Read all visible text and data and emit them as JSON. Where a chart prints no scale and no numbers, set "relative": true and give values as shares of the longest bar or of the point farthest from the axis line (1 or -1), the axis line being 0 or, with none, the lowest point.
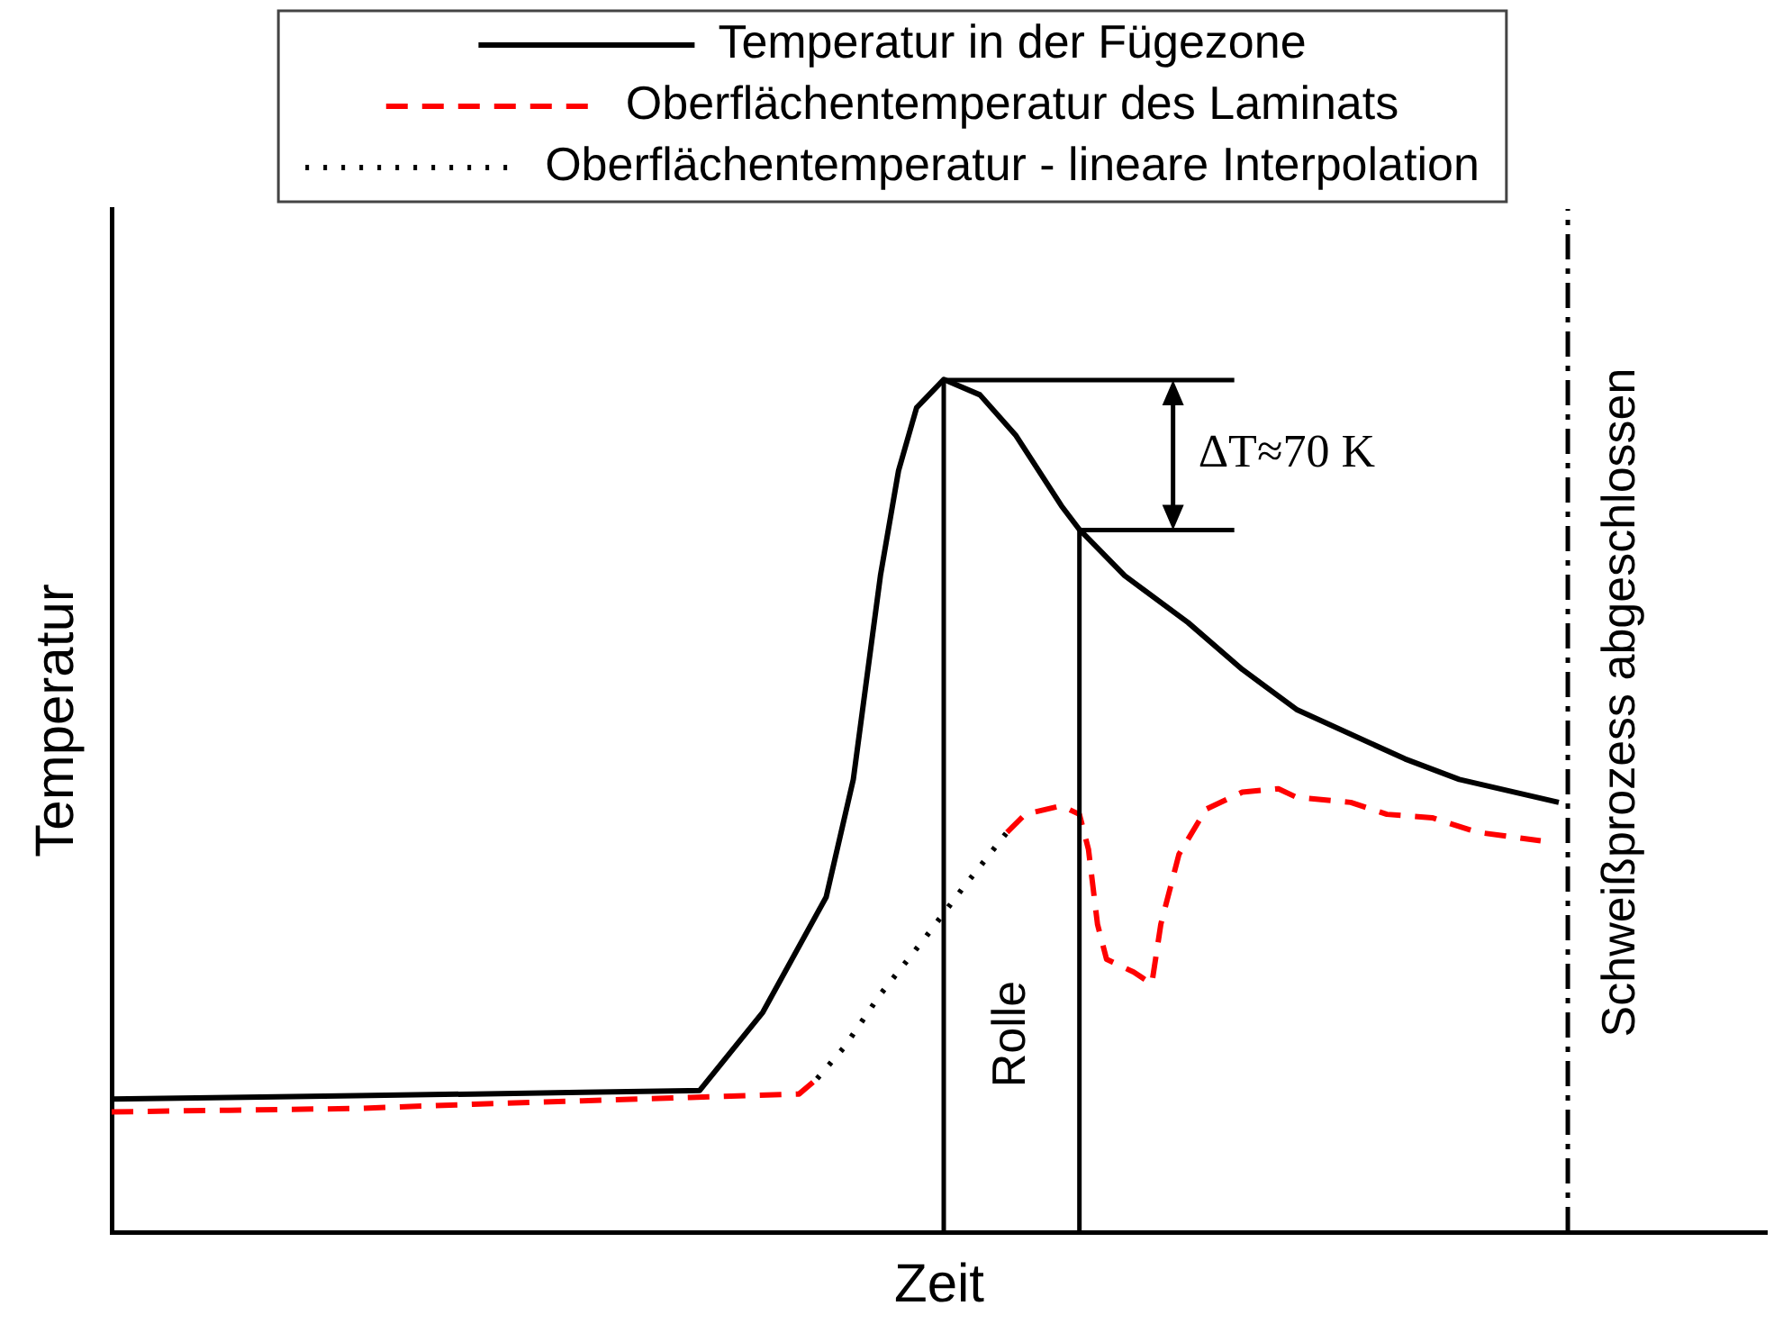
{
  "chart_data": {
    "type": "line",
    "relative": true,
    "xlabel": "Zeit",
    "ylabel": "Temperatur",
    "legend": "top",
    "marker": "none",
    "categories": [
      null,
      null,
      null,
      null,
      null,
      null,
      null,
      null,
      null,
      null,
      null,
      null,
      null,
      null,
      null,
      null,
      null,
      null,
      null,
      null,
      null,
      null,
      null,
      null,
      null,
      null,
      null,
      null,
      null,
      null,
      null,
      null,
      null,
      null,
      null,
      null,
      null,
      null,
      null,
      null,
      null,
      null,
      null,
      null,
      null,
      null,
      null,
      null,
      null,
      null,
      null,
      null,
      null,
      null,
      null,
      null,
      null,
      null,
      null,
      null,
      null,
      null,
      null,
      null,
      null,
      null,
      null,
      null,
      null,
      null,
      null,
      null,
      null,
      null,
      null,
      null,
      null,
      null,
      null,
      null,
      null,
      null,
      null,
      null,
      null,
      null,
      null,
      null,
      null,
      null,
      null,
      null,
      null,
      null,
      null,
      null,
      null,
      null,
      null,
      null,
      null,
      null,
      null,
      null,
      null,
      null,
      null,
      null,
      null,
      null,
      null,
      null,
      null,
      null,
      null,
      null,
      null,
      null,
      null,
      null,
      null,
      null,
      null,
      null,
      null,
      null,
      null,
      null,
      null,
      null,
      null,
      null,
      null,
      null,
      null,
      null,
      null,
      null,
      null,
      null,
      null,
      null,
      null,
      null,
      null,
      null,
      null,
      null,
      null,
      null,
      null,
      null,
      null,
      null,
      null,
      null,
      null,
      null,
      null,
      null,
      null,
      null,
      null,
      null,
      null,
      null,
      null,
      null,
      null,
      null,
      null,
      null,
      null,
      null,
      null,
      null,
      null,
      null,
      null,
      null,
      null,
      null,
      null,
      null
    ],
    "series": [
      {
        "name": "Temperatur in der Fügezone",
        "color": "#000000",
        "line_style": "solid",
        "values": [
          0.156,
          null,
          null,
          null,
          null,
          null,
          null,
          null,
          null,
          null,
          null,
          null,
          null,
          0.158,
          null,
          null,
          null,
          null,
          null,
          null,
          null,
          null,
          null,
          null,
          null,
          null,
          null,
          0.16,
          null,
          null,
          null,
          null,
          null,
          null,
          null,
          null,
          null,
          null,
          null,
          null,
          0.162,
          null,
          null,
          null,
          null,
          null,
          null,
          null,
          null,
          null,
          null,
          null,
          0.164,
          null,
          null,
          null,
          null,
          null,
          null,
          null,
          null,
          null,
          null,
          null,
          null,
          0.166,
          null,
          null,
          null,
          null,
          null,
          null,
          0.258,
          null,
          null,
          null,
          null,
          null,
          null,
          0.393,
          null,
          null,
          0.531,
          null,
          null,
          0.77,
          null,
          0.893,
          null,
          0.967,
          null,
          null,
          1,
          null,
          null,
          null,
          0.982,
          null,
          null,
          null,
          0.934,
          null,
          null,
          null,
          null,
          0.852,
          null,
          0.824,
          null,
          null,
          null,
          null,
          0.77,
          null,
          null,
          null,
          null,
          null,
          null,
          0.715,
          null,
          null,
          null,
          null,
          null,
          0.66,
          null,
          null,
          null,
          null,
          null,
          0.613,
          null,
          null,
          null,
          null,
          null,
          null,
          null,
          null,
          null,
          null,
          null,
          0.555,
          null,
          null,
          null,
          null,
          null,
          0.531,
          null,
          null,
          null,
          null,
          null,
          null,
          null,
          null,
          null,
          null,
          0.504,
          null,
          null,
          null,
          null,
          null,
          null,
          null,
          null,
          null,
          null,
          null,
          null,
          null,
          null,
          null,
          null,
          null,
          null,
          null,
          null,
          null,
          null,
          null
        ]
      },
      {
        "name": "Oberflächentemperatur des Laminats",
        "color": "#ff0000",
        "line_style": "dashed",
        "values": [
          0.141,
          null,
          null,
          null,
          null,
          null,
          null,
          null,
          null,
          null,
          null,
          null,
          null,
          0.143,
          null,
          null,
          null,
          null,
          null,
          null,
          null,
          null,
          null,
          null,
          null,
          null,
          null,
          0.145,
          null,
          null,
          null,
          null,
          null,
          null,
          null,
          null,
          null,
          null,
          null,
          null,
          0.15,
          null,
          null,
          null,
          null,
          null,
          null,
          null,
          null,
          null,
          null,
          null,
          0.154,
          null,
          null,
          null,
          null,
          null,
          null,
          null,
          null,
          null,
          null,
          null,
          0.158,
          null,
          null,
          null,
          null,
          null,
          null,
          null,
          null,
          null,
          null,
          null,
          0.162,
          null,
          0.18,
          null,
          null,
          null,
          null,
          null,
          null,
          null,
          null,
          null,
          null,
          null,
          null,
          null,
          null,
          null,
          null,
          null,
          null,
          null,
          null,
          0.469,
          null,
          0.49,
          null,
          null,
          null,
          0.5,
          null,
          0.49,
          0.449,
          0.361,
          0.32,
          null,
          null,
          0.305,
          null,
          0.291,
          0.361,
          null,
          0.443,
          null,
          null,
          0.496,
          null,
          null,
          null,
          0.516,
          null,
          null,
          null,
          0.52,
          null,
          0.51,
          null,
          null,
          null,
          null,
          null,
          0.504,
          null,
          null,
          null,
          0.49,
          null,
          null,
          null,
          null,
          0.486,
          null,
          null,
          null,
          null,
          0.469,
          null,
          null,
          null,
          null,
          null,
          null,
          0.459,
          null,
          null,
          null,
          null,
          null,
          null,
          null,
          null,
          null,
          null,
          null,
          null,
          null,
          null,
          null,
          null,
          null,
          null,
          null,
          null,
          null,
          null,
          null,
          null,
          null
        ]
      },
      {
        "name": "Oberflächentemperatur - lineare Interpolation",
        "color": "#000000",
        "line_style": "dotted",
        "values": [
          null,
          null,
          null,
          null,
          null,
          null,
          null,
          null,
          null,
          null,
          null,
          null,
          null,
          null,
          null,
          null,
          null,
          null,
          null,
          null,
          null,
          null,
          null,
          null,
          null,
          null,
          null,
          null,
          null,
          null,
          null,
          null,
          null,
          null,
          null,
          null,
          null,
          null,
          null,
          null,
          null,
          null,
          null,
          null,
          null,
          null,
          null,
          null,
          null,
          null,
          null,
          null,
          null,
          null,
          null,
          null,
          null,
          null,
          null,
          null,
          null,
          null,
          null,
          null,
          null,
          null,
          null,
          null,
          null,
          null,
          null,
          null,
          null,
          null,
          null,
          null,
          null,
          null,
          0.18,
          null,
          null,
          0.217,
          null,
          null,
          null,
          0.279,
          null,
          null,
          null,
          null,
          0.346,
          null,
          null,
          null,
          0.402,
          null,
          null,
          null,
          null,
          0.469,
          null,
          null,
          null,
          null,
          null,
          null,
          null,
          null,
          null,
          null,
          null,
          null,
          null,
          null,
          null,
          null,
          null,
          null,
          null,
          null,
          null,
          null,
          null,
          null,
          null,
          null,
          null,
          null,
          null,
          null,
          null,
          null,
          null,
          null,
          null,
          null,
          null,
          null,
          null,
          null,
          null,
          null,
          null,
          null,
          null,
          null,
          null,
          null,
          null,
          null,
          null,
          null,
          null,
          null,
          null,
          null,
          null,
          null,
          null,
          null,
          null,
          null,
          null,
          null,
          null,
          null,
          null,
          null,
          null,
          null,
          null,
          null,
          null,
          null,
          null,
          null,
          null,
          null,
          null,
          null,
          null,
          null,
          null,
          null
        ]
      }
    ],
    "annotations": [
      "Rolle",
      "ΔT≈70 K",
      "Schweißprozess abgeschlossen"
    ]
  }
}
